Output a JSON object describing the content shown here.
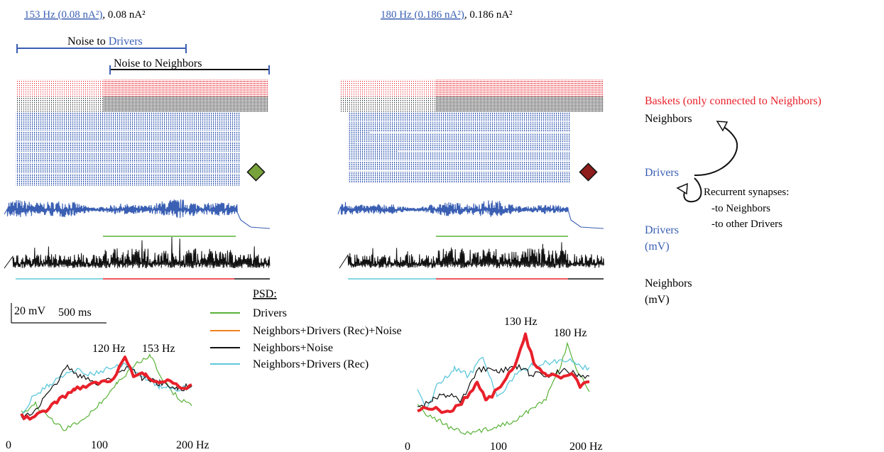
{
  "colors": {
    "drivers": "#3a5fb3",
    "neighbors": "#111111",
    "baskets": "#e8202a",
    "psd_drivers": "#58b236",
    "psd_full": "#f0801e",
    "psd_noise": "#111111",
    "psd_rec": "#5ec8dc",
    "psd_highlight": "#e8202a",
    "marker_left": "#78a23a",
    "marker_right": "#8e1d1d"
  },
  "left_panel": {
    "title_link": "153 Hz (0.08 nA²)",
    "title_rest": ", 0.08 nA²",
    "noise_drivers_prefix": "Noise to ",
    "noise_drivers_word": "Drivers",
    "noise_neighbors": "Noise to Neighbors",
    "peak1_label": "120 Hz",
    "peak2_label": "153 Hz",
    "marker_icon": "green-diamond-icon"
  },
  "right_panel": {
    "title_link": "180 Hz (0.186 nA²)",
    "title_rest": ", 0.186 nA²",
    "peak1_label": "130 Hz",
    "peak2_label": "180 Hz",
    "marker_icon": "red-diamond-icon"
  },
  "scale_bar": {
    "voltage": "20 mV",
    "time": "500 ms"
  },
  "psd_legend": {
    "title": "PSD:",
    "items": [
      {
        "label": "Drivers",
        "color": "#58b236"
      },
      {
        "label": "Neighbors+Drivers (Rec)+Noise",
        "color": "#f0801e"
      },
      {
        "label": "Neighbors+Noise",
        "color": "#111111"
      },
      {
        "label": "Neighbors+Drivers (Rec)",
        "color": "#5ec8dc"
      }
    ]
  },
  "axis": {
    "x_ticks": [
      "0",
      "100",
      "200 Hz"
    ]
  },
  "right_labels": {
    "baskets": "Baskets (only connected to Neighbors)",
    "neighbors": "Neighbors",
    "drivers": "Drivers",
    "recurrent_title": "Recurrent synapses:",
    "recurrent_item1": "-to Neighbors",
    "recurrent_item2": "-to other Drivers",
    "drivers_mv_1": "Drivers",
    "drivers_mv_2": "(mV)",
    "neighbors_mv_1": "Neighbors",
    "neighbors_mv_2": "(mV)"
  }
}
